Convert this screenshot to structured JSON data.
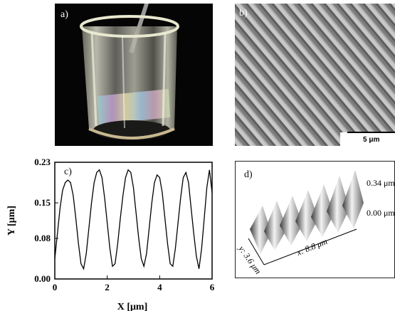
{
  "panel_a": {
    "label": "a)"
  },
  "panel_b": {
    "label": "b)",
    "scale_label": "5 μm"
  },
  "panel_c": {
    "label": "c)",
    "chart_data": {
      "type": "line",
      "xlabel": "X [μm]",
      "ylabel": "Y [μm]",
      "xlim": [
        0,
        6
      ],
      "ylim": [
        0,
        0.23
      ],
      "x_ticks": [
        "0",
        "2",
        "4",
        "6"
      ],
      "y_ticks": [
        "0.00",
        "0.08",
        "0.15",
        "0.23"
      ],
      "series": [
        {
          "x": [
            0,
            0.1,
            0.2,
            0.3,
            0.4,
            0.5,
            0.6,
            0.7,
            0.8,
            0.9,
            1.0,
            1.1,
            1.2,
            1.3,
            1.4,
            1.5,
            1.6,
            1.7,
            1.8,
            1.9,
            2.0,
            2.1,
            2.2,
            2.3,
            2.4,
            2.5,
            2.6,
            2.7,
            2.8,
            2.9,
            3.0,
            3.1,
            3.2,
            3.3,
            3.4,
            3.5,
            3.6,
            3.7,
            3.8,
            3.9,
            4.0,
            4.1,
            4.2,
            4.3,
            4.4,
            4.5,
            4.6,
            4.7,
            4.8,
            4.9,
            5.0,
            5.1,
            5.2,
            5.3,
            5.4,
            5.5,
            5.6,
            5.7,
            5.8,
            5.9,
            6.0
          ],
          "y": [
            0.04,
            0.09,
            0.14,
            0.175,
            0.19,
            0.195,
            0.19,
            0.165,
            0.12,
            0.07,
            0.03,
            0.02,
            0.05,
            0.1,
            0.15,
            0.19,
            0.21,
            0.215,
            0.2,
            0.16,
            0.11,
            0.06,
            0.025,
            0.03,
            0.07,
            0.12,
            0.165,
            0.2,
            0.215,
            0.21,
            0.18,
            0.13,
            0.08,
            0.04,
            0.025,
            0.05,
            0.1,
            0.15,
            0.19,
            0.205,
            0.2,
            0.17,
            0.12,
            0.07,
            0.03,
            0.025,
            0.06,
            0.11,
            0.16,
            0.2,
            0.21,
            0.19,
            0.14,
            0.09,
            0.045,
            0.02,
            0.06,
            0.12,
            0.18,
            0.215,
            0.17
          ]
        }
      ]
    }
  },
  "panel_d": {
    "label": "d)",
    "z_top": "0.34 μm",
    "z_bottom": "0.00 μm",
    "x_axis": "x: 8.8 μm",
    "y_axis": "y: 3.6 μm"
  }
}
